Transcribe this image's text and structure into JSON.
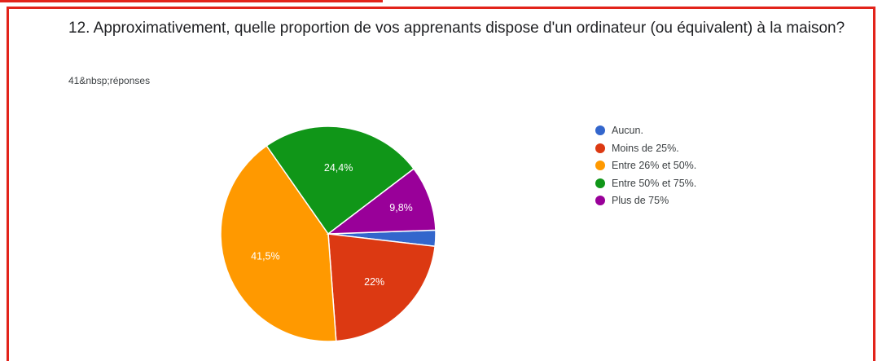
{
  "question": {
    "title": "12. Approximativement, quelle proportion de vos apprenants dispose d'un ordinateur (ou équivalent) à la maison?",
    "responses": "41&nbsp;réponses"
  },
  "chart_data": {
    "type": "pie",
    "title": "12. Approximativement, quelle proportion de vos apprenants dispose d'un ordinateur (ou équivalent) à la maison?",
    "slices": [
      {
        "label": "Aucun.",
        "value": 2.4,
        "data_label": "",
        "color": "#3366cc"
      },
      {
        "label": "Moins de 25%.",
        "value": 22.0,
        "data_label": "22%",
        "color": "#dc3912"
      },
      {
        "label": "Entre 26% et 50%.",
        "value": 41.5,
        "data_label": "41,5%",
        "color": "#ff9900"
      },
      {
        "label": "Entre 50% et 75%.",
        "value": 24.4,
        "data_label": "24,4%",
        "color": "#109618"
      },
      {
        "label": "Plus de 75%",
        "value": 9.8,
        "data_label": "9,8%",
        "color": "#990099"
      }
    ],
    "legend_position": "right"
  },
  "legend": {
    "items": [
      {
        "label": "Aucun.",
        "color": "#3366cc"
      },
      {
        "label": "Moins de 25%.",
        "color": "#dc3912"
      },
      {
        "label": "Entre 26% et 50%.",
        "color": "#ff9900"
      },
      {
        "label": "Entre 50% et 75%.",
        "color": "#109618"
      },
      {
        "label": "Plus de 75%",
        "color": "#990099"
      }
    ]
  },
  "colors": {
    "frame_border": "#e2231a"
  }
}
